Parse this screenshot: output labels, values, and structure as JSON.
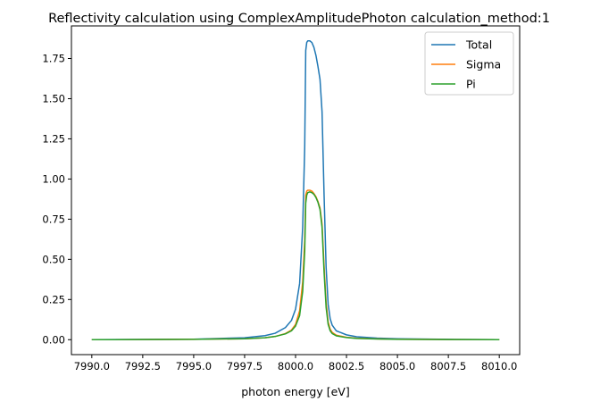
{
  "chart_data": {
    "type": "line",
    "title": "Reflectivity calculation using ComplexAmplitudePhoton calculation_method:1",
    "xlabel": "photon energy [eV]",
    "ylabel": "",
    "xlim": [
      7989.0,
      8011.0
    ],
    "ylim": [
      -0.093,
      1.953
    ],
    "xticks": [
      "7990.0",
      "7992.5",
      "7995.0",
      "7997.5",
      "8000.0",
      "8002.5",
      "8005.0",
      "8007.5",
      "8010.0"
    ],
    "yticks": [
      "0.00",
      "0.25",
      "0.50",
      "0.75",
      "1.00",
      "1.25",
      "1.50",
      "1.75"
    ],
    "grid": false,
    "legend_position": "top-right",
    "series": [
      {
        "name": "Total",
        "color": "#1f77b4",
        "x": [
          7990.0,
          7995.0,
          7997.5,
          7998.5,
          7999.0,
          7999.5,
          7999.8,
          8000.0,
          8000.2,
          8000.35,
          8000.45,
          8000.5,
          8000.55,
          8000.6,
          8000.7,
          8000.8,
          8000.9,
          8001.0,
          8001.1,
          8001.2,
          8001.3,
          8001.4,
          8001.5,
          8001.6,
          8001.7,
          8001.8,
          8002.0,
          8002.5,
          8003.0,
          8004.0,
          8005.0,
          8007.5,
          8010.0
        ],
        "y": [
          0.0,
          0.003,
          0.012,
          0.025,
          0.04,
          0.075,
          0.12,
          0.19,
          0.35,
          0.7,
          1.2,
          1.8,
          1.85,
          1.86,
          1.86,
          1.85,
          1.82,
          1.77,
          1.7,
          1.62,
          1.42,
          0.9,
          0.45,
          0.22,
          0.13,
          0.09,
          0.055,
          0.03,
          0.018,
          0.01,
          0.006,
          0.002,
          0.0
        ]
      },
      {
        "name": "Sigma",
        "color": "#ff7f0e",
        "x": [
          7990.0,
          7995.0,
          7997.5,
          7998.5,
          7999.0,
          7999.5,
          7999.8,
          8000.0,
          8000.2,
          8000.35,
          8000.45,
          8000.5,
          8000.55,
          8000.6,
          8000.7,
          8000.8,
          8000.9,
          8001.0,
          8001.1,
          8001.2,
          8001.3,
          8001.4,
          8001.5,
          8001.6,
          8001.7,
          8001.8,
          8002.0,
          8002.5,
          8003.0,
          8004.0,
          8005.0,
          8007.5,
          8010.0
        ],
        "y": [
          0.0,
          0.002,
          0.006,
          0.012,
          0.02,
          0.038,
          0.06,
          0.095,
          0.18,
          0.36,
          0.62,
          0.9,
          0.925,
          0.93,
          0.93,
          0.925,
          0.91,
          0.89,
          0.86,
          0.82,
          0.72,
          0.46,
          0.23,
          0.11,
          0.065,
          0.045,
          0.028,
          0.015,
          0.009,
          0.005,
          0.003,
          0.001,
          0.0
        ]
      },
      {
        "name": "Pi",
        "color": "#2ca02c",
        "x": [
          7990.0,
          7995.0,
          7997.5,
          7998.5,
          7999.0,
          7999.5,
          7999.8,
          8000.0,
          8000.2,
          8000.35,
          8000.45,
          8000.5,
          8000.55,
          8000.6,
          8000.7,
          8000.8,
          8000.9,
          8001.0,
          8001.1,
          8001.2,
          8001.3,
          8001.4,
          8001.5,
          8001.6,
          8001.7,
          8001.8,
          8002.0,
          8002.5,
          8003.0,
          8004.0,
          8005.0,
          8007.5,
          8010.0
        ],
        "y": [
          0.0,
          0.002,
          0.006,
          0.012,
          0.02,
          0.036,
          0.055,
          0.085,
          0.15,
          0.3,
          0.55,
          0.85,
          0.9,
          0.915,
          0.92,
          0.915,
          0.905,
          0.885,
          0.855,
          0.81,
          0.7,
          0.42,
          0.2,
          0.095,
          0.055,
          0.038,
          0.024,
          0.013,
          0.008,
          0.004,
          0.002,
          0.001,
          0.0
        ]
      }
    ]
  }
}
